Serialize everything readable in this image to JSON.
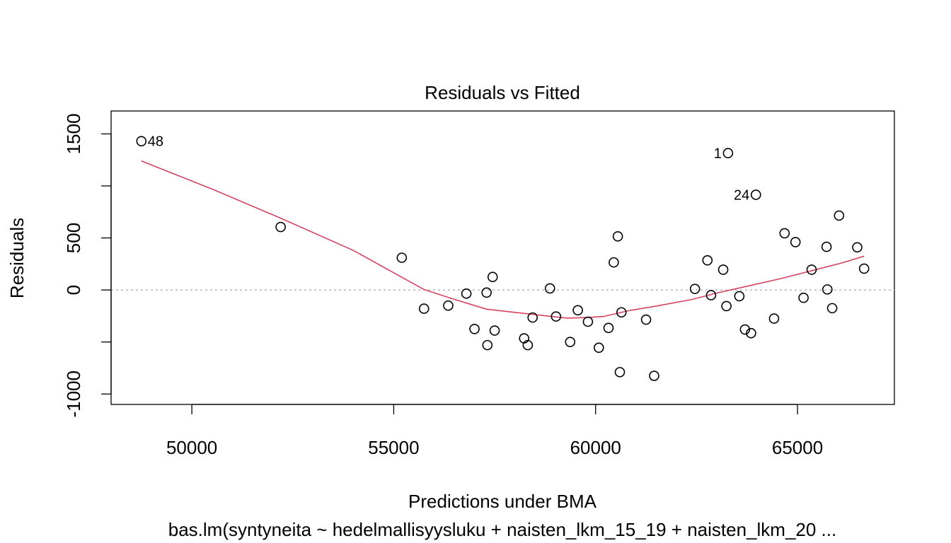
{
  "chart_data": {
    "type": "scatter",
    "title": "Residuals vs Fitted",
    "xlabel": "Predictions under BMA",
    "ylabel": "Residuals",
    "subtitle": "bas.lm(syntyneita ~ hedelmallisyysluku + naisten_lkm_15_19 + naisten_lkm_20 ...",
    "xlim": [
      48000,
      67400
    ],
    "ylim": [
      -1100,
      1720
    ],
    "x_ticks": [
      50000,
      55000,
      60000,
      65000
    ],
    "y_ticks": [
      -1000,
      -500,
      0,
      500,
      1000,
      1500
    ],
    "y_tick_labels": [
      "-1000",
      "",
      "0",
      "500",
      "",
      "1500"
    ],
    "reference_line": {
      "y": 0,
      "style": "dotted",
      "color": "#aaaaaa"
    },
    "smooth_color": "#d6425f",
    "point_color": "#000000",
    "points": [
      {
        "x": 48750,
        "y": 1430,
        "label": "48",
        "label_side": "right"
      },
      {
        "x": 52200,
        "y": 605
      },
      {
        "x": 55200,
        "y": 310
      },
      {
        "x": 55750,
        "y": -180
      },
      {
        "x": 56350,
        "y": -150
      },
      {
        "x": 56800,
        "y": -35
      },
      {
        "x": 57000,
        "y": -375
      },
      {
        "x": 57300,
        "y": -25
      },
      {
        "x": 57320,
        "y": -530
      },
      {
        "x": 57450,
        "y": 125
      },
      {
        "x": 57500,
        "y": -390
      },
      {
        "x": 58230,
        "y": -465
      },
      {
        "x": 58320,
        "y": -530
      },
      {
        "x": 58440,
        "y": -265
      },
      {
        "x": 58870,
        "y": 15
      },
      {
        "x": 59020,
        "y": -255
      },
      {
        "x": 59370,
        "y": -500
      },
      {
        "x": 59560,
        "y": -195
      },
      {
        "x": 59810,
        "y": -305
      },
      {
        "x": 60080,
        "y": -555
      },
      {
        "x": 60320,
        "y": -365
      },
      {
        "x": 60450,
        "y": 265
      },
      {
        "x": 60550,
        "y": 515
      },
      {
        "x": 60600,
        "y": -790
      },
      {
        "x": 60640,
        "y": -215
      },
      {
        "x": 61250,
        "y": -285
      },
      {
        "x": 61450,
        "y": -825
      },
      {
        "x": 62460,
        "y": 10
      },
      {
        "x": 62770,
        "y": 285
      },
      {
        "x": 62860,
        "y": -50
      },
      {
        "x": 63160,
        "y": 195
      },
      {
        "x": 63240,
        "y": -155
      },
      {
        "x": 63280,
        "y": 1315,
        "label": "1",
        "label_side": "left"
      },
      {
        "x": 63560,
        "y": -60
      },
      {
        "x": 63700,
        "y": -380
      },
      {
        "x": 63850,
        "y": -415
      },
      {
        "x": 63970,
        "y": 915,
        "label": "24",
        "label_side": "left"
      },
      {
        "x": 64420,
        "y": -275
      },
      {
        "x": 64680,
        "y": 545
      },
      {
        "x": 64950,
        "y": 460
      },
      {
        "x": 65150,
        "y": -75
      },
      {
        "x": 65350,
        "y": 195
      },
      {
        "x": 65720,
        "y": 415
      },
      {
        "x": 65740,
        "y": 5
      },
      {
        "x": 65860,
        "y": -175
      },
      {
        "x": 66030,
        "y": 715
      },
      {
        "x": 66480,
        "y": 410
      },
      {
        "x": 66650,
        "y": 205
      }
    ],
    "smooth_line": [
      {
        "x": 48750,
        "y": 1240
      },
      {
        "x": 50500,
        "y": 970
      },
      {
        "x": 52200,
        "y": 690
      },
      {
        "x": 54000,
        "y": 380
      },
      {
        "x": 55000,
        "y": 165
      },
      {
        "x": 55750,
        "y": 5
      },
      {
        "x": 56500,
        "y": -90
      },
      {
        "x": 57300,
        "y": -185
      },
      {
        "x": 58000,
        "y": -215
      },
      {
        "x": 58800,
        "y": -250
      },
      {
        "x": 59300,
        "y": -270
      },
      {
        "x": 59800,
        "y": -265
      },
      {
        "x": 60200,
        "y": -255
      },
      {
        "x": 60800,
        "y": -200
      },
      {
        "x": 61500,
        "y": -155
      },
      {
        "x": 62400,
        "y": -90
      },
      {
        "x": 63000,
        "y": -30
      },
      {
        "x": 63800,
        "y": 40
      },
      {
        "x": 64600,
        "y": 110
      },
      {
        "x": 65400,
        "y": 190
      },
      {
        "x": 66100,
        "y": 260
      },
      {
        "x": 66650,
        "y": 325
      }
    ]
  }
}
